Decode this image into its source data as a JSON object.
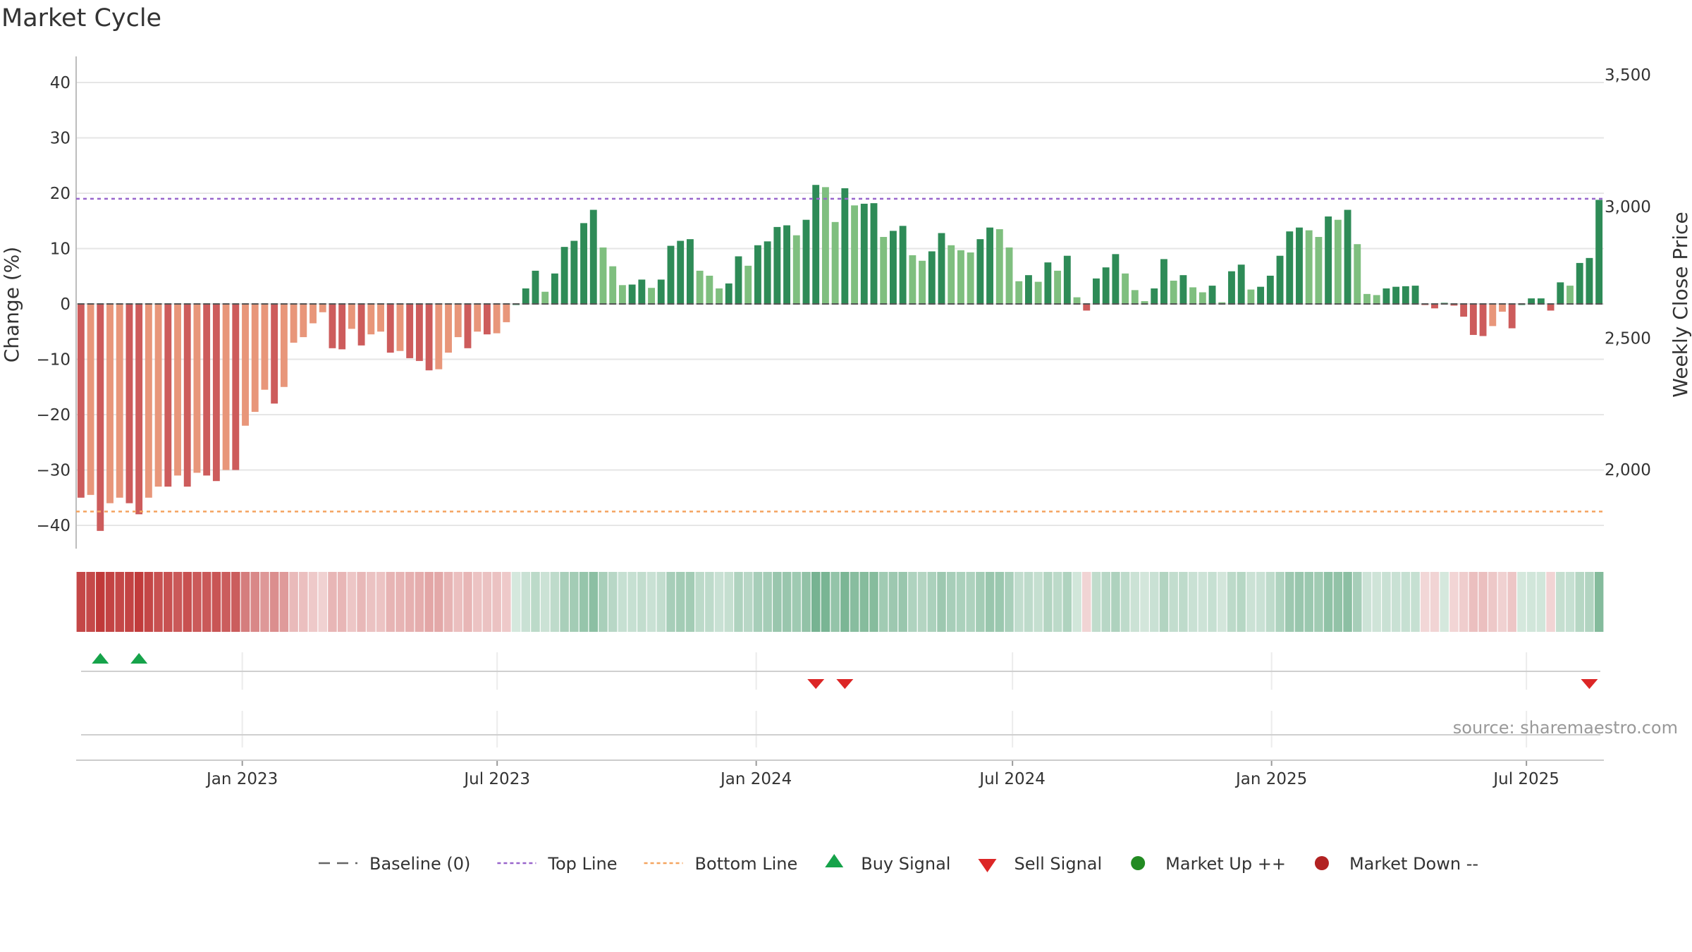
{
  "title": "Market Cycle",
  "source": "source: sharemaestro.com",
  "chart_data": {
    "type": "bar",
    "title": "Market Cycle",
    "ylabel": "Change (%)",
    "y2label": "Weekly Close Price",
    "ylim": [
      -44,
      44
    ],
    "y2lim": [
      1700,
      3570
    ],
    "yticks": [
      40,
      30,
      20,
      10,
      0,
      -10,
      -20,
      -30,
      -40
    ],
    "y2ticks": [
      3500,
      3000,
      2500,
      2000
    ],
    "top_line": 19,
    "bottom_line": -37.5,
    "x_start": "2022-09-05",
    "x_end": "2025-08-25",
    "xticks": [
      {
        "label": "Jan 2023",
        "date": "2023-01-01"
      },
      {
        "label": "Jul 2023",
        "date": "2023-07-01"
      },
      {
        "label": "Jan 2024",
        "date": "2024-01-01"
      },
      {
        "label": "Jul 2024",
        "date": "2024-07-01"
      },
      {
        "label": "Jan 2025",
        "date": "2025-01-01"
      },
      {
        "label": "Jul 2025",
        "date": "2025-07-01"
      }
    ],
    "values": [
      -35,
      -34.5,
      -41,
      -36,
      -35,
      -36,
      -38,
      -35,
      -33,
      -33,
      -31,
      -33,
      -30.5,
      -31,
      -32,
      -30,
      -30,
      -22,
      -19.5,
      -15.5,
      -18,
      -15,
      -7,
      -6,
      -3.5,
      -1.5,
      -8,
      -8.2,
      -4.5,
      -7.5,
      -5.5,
      -5,
      -8.8,
      -8.5,
      -9.8,
      -10.3,
      -12,
      -11.8,
      -8.8,
      -6,
      -8,
      -5,
      -5.5,
      -5.3,
      -3.3,
      0,
      2.8,
      6,
      2.2,
      5.5,
      10.3,
      11.4,
      14.6,
      17,
      10.2,
      6.8,
      3.4,
      3.5,
      4.4,
      2.9,
      4.4,
      10.5,
      11.4,
      11.7,
      6,
      5.1,
      2.8,
      3.7,
      8.6,
      6.9,
      10.6,
      11.3,
      13.9,
      14.2,
      12.4,
      15.2,
      21.5,
      21.1,
      14.8,
      20.9,
      17.8,
      18.1,
      18.2,
      12.1,
      13.2,
      14.1,
      8.8,
      7.8,
      9.5,
      12.8,
      10.6,
      9.7,
      9.3,
      11.7,
      13.8,
      13.5,
      10.2,
      4.1,
      5.2,
      4,
      7.5,
      6,
      8.7,
      1.2,
      -1.2,
      4.6,
      6.6,
      9,
      5.5,
      2.5,
      0.5,
      2.8,
      8.1,
      4.2,
      5.2,
      3,
      2.1,
      3.3,
      0.3,
      5.9,
      7.1,
      2.6,
      3.1,
      5.1,
      8.7,
      13.1,
      13.8,
      13.3,
      12.1,
      15.8,
      15.2,
      17,
      10.8,
      1.8,
      1.6,
      2.8,
      3.1,
      3.2,
      3.3,
      -0.2,
      -0.8,
      0.2,
      -0.3,
      -2.3,
      -5.6,
      -5.8,
      -4,
      -1.4,
      -4.4,
      0,
      1,
      1,
      -1.2,
      3.9,
      3.3,
      7.4,
      8.3,
      18.8
    ],
    "price_series": [],
    "buy_signals": [
      2,
      6
    ],
    "sell_signals": [
      76,
      79,
      156
    ],
    "colors": {
      "strong_down": "#cd5c5c",
      "mild_down": "#e8967a",
      "strong_up": "#2e8b57",
      "mild_up": "#7fbf7f",
      "top_line": "#9966cc",
      "bottom_line": "#f4a460",
      "buy": "#16a34a",
      "sell": "#dc2626"
    }
  },
  "legend": [
    {
      "label": "Baseline (0)",
      "icon": "dash-line",
      "color": "#666666"
    },
    {
      "label": "Top Line",
      "icon": "dotted-line",
      "color": "#9966cc"
    },
    {
      "label": "Bottom Line",
      "icon": "dotted-line",
      "color": "#f4a460"
    },
    {
      "label": "Buy Signal",
      "icon": "triangle-up",
      "color": "#16a34a"
    },
    {
      "label": "Sell Signal",
      "icon": "triangle-down",
      "color": "#dc2626"
    },
    {
      "label": "Market Up ++",
      "icon": "circle",
      "color": "#228b22"
    },
    {
      "label": "Market Down --",
      "icon": "circle",
      "color": "#b22222"
    }
  ]
}
